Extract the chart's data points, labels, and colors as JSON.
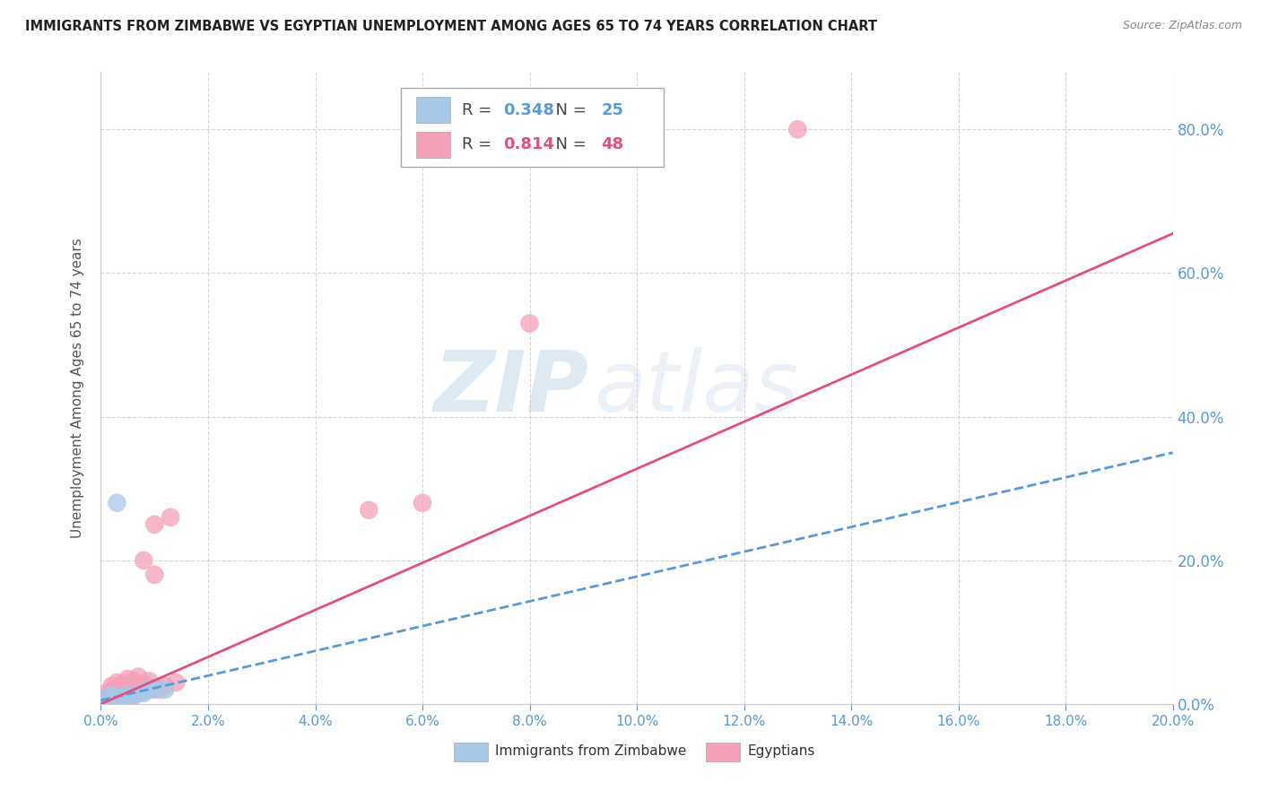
{
  "title": "IMMIGRANTS FROM ZIMBABWE VS EGYPTIAN UNEMPLOYMENT AMONG AGES 65 TO 74 YEARS CORRELATION CHART",
  "source": "Source: ZipAtlas.com",
  "ylabel": "Unemployment Among Ages 65 to 74 years",
  "legend_label_1": "Immigrants from Zimbabwe",
  "legend_label_2": "Egyptians",
  "R1": 0.348,
  "N1": 25,
  "R2": 0.814,
  "N2": 48,
  "xlim": [
    0.0,
    0.2
  ],
  "ylim": [
    0.0,
    0.88
  ],
  "right_yticks": [
    0.0,
    0.2,
    0.4,
    0.6,
    0.8
  ],
  "color_zimbabwe": "#a8c8e8",
  "color_egypt": "#f4a0b8",
  "color_zimbabwe_line": "#5b9bd5",
  "color_egypt_line": "#e05080",
  "watermark_zip": "ZIP",
  "watermark_atlas": "atlas",
  "zimbabwe_x": [
    0.0,
    0.0,
    0.0,
    0.001,
    0.001,
    0.001,
    0.001,
    0.002,
    0.002,
    0.002,
    0.002,
    0.002,
    0.003,
    0.003,
    0.003,
    0.004,
    0.004,
    0.005,
    0.005,
    0.006,
    0.007,
    0.008,
    0.009,
    0.01,
    0.012
  ],
  "zimbabwe_y": [
    0.0,
    0.002,
    0.004,
    0.0,
    0.003,
    0.005,
    0.008,
    0.001,
    0.004,
    0.006,
    0.01,
    0.012,
    0.003,
    0.008,
    0.28,
    0.004,
    0.01,
    0.005,
    0.012,
    0.01,
    0.015,
    0.015,
    0.02,
    0.02,
    0.02
  ],
  "egypt_x": [
    0.0,
    0.0,
    0.0,
    0.001,
    0.001,
    0.001,
    0.001,
    0.001,
    0.002,
    0.002,
    0.002,
    0.002,
    0.002,
    0.003,
    0.003,
    0.003,
    0.003,
    0.003,
    0.004,
    0.004,
    0.004,
    0.004,
    0.005,
    0.005,
    0.005,
    0.005,
    0.006,
    0.006,
    0.006,
    0.007,
    0.007,
    0.007,
    0.008,
    0.008,
    0.008,
    0.009,
    0.009,
    0.01,
    0.01,
    0.01,
    0.011,
    0.012,
    0.013,
    0.014,
    0.05,
    0.06,
    0.08,
    0.13
  ],
  "egypt_y": [
    0.0,
    0.002,
    0.006,
    0.0,
    0.003,
    0.006,
    0.01,
    0.015,
    0.003,
    0.007,
    0.012,
    0.018,
    0.025,
    0.005,
    0.01,
    0.015,
    0.022,
    0.03,
    0.008,
    0.014,
    0.02,
    0.028,
    0.01,
    0.018,
    0.025,
    0.035,
    0.012,
    0.022,
    0.032,
    0.015,
    0.025,
    0.038,
    0.018,
    0.028,
    0.2,
    0.02,
    0.032,
    0.022,
    0.18,
    0.25,
    0.02,
    0.025,
    0.26,
    0.03,
    0.27,
    0.28,
    0.53,
    0.8
  ],
  "zim_trend_x": [
    0.0,
    0.2
  ],
  "zim_trend_y": [
    0.005,
    0.35
  ],
  "egy_trend_x": [
    0.0,
    0.2
  ],
  "egy_trend_y": [
    0.0,
    0.655
  ]
}
